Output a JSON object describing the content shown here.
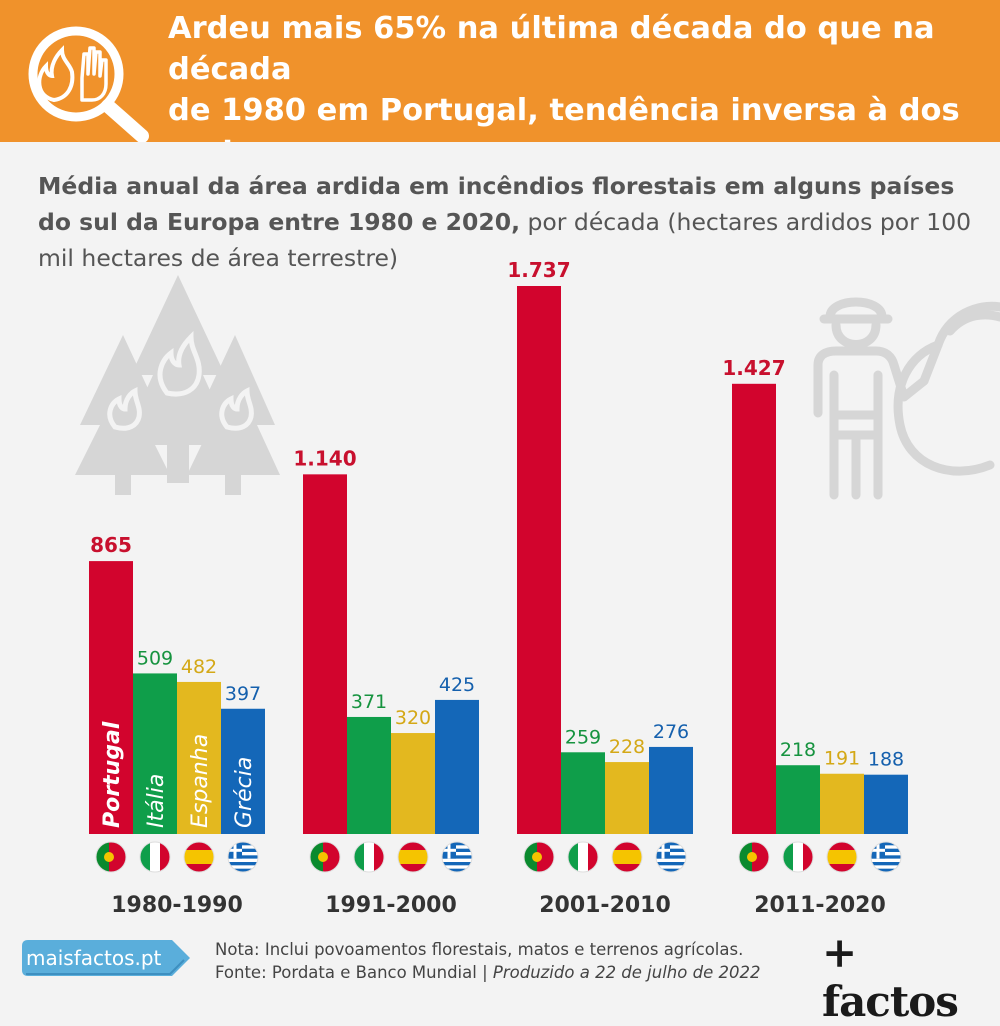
{
  "header": {
    "title": "Ardeu mais 65% na última década do que na década\nde 1980 em Portugal, tendência inversa à dos restan-\ntes países do sul da Europa (arde menos de metade)",
    "icon": "magnifier-fire-hand-icon"
  },
  "subtitle": {
    "bold": "Média anual da área ardida em incêndios florestais em alguns países do sul da Europa entre 1980 e 2020,",
    "regular": " por década (hectares ardidos por 100 mil hectares de área terrestre)"
  },
  "chart_data": {
    "type": "bar",
    "categories": [
      "1980-1990",
      "1991-2000",
      "2001-2010",
      "2011-2020"
    ],
    "series": [
      {
        "name": "Portugal",
        "color": "#d2042d",
        "label_color": "#c8102e",
        "flag": "portugal-flag-icon",
        "values": [
          865,
          1140,
          1737,
          1427
        ],
        "labels": [
          "865",
          "1.140",
          "1.737",
          "1.427"
        ]
      },
      {
        "name": "Itália",
        "color": "#0f9e4a",
        "label_color": "#16933f",
        "flag": "italy-flag-icon",
        "values": [
          509,
          371,
          259,
          218
        ],
        "labels": [
          "509",
          "371",
          "259",
          "218"
        ]
      },
      {
        "name": "Espanha",
        "color": "#e3b81f",
        "label_color": "#d4a816",
        "flag": "spain-flag-icon",
        "values": [
          482,
          320,
          228,
          191
        ],
        "labels": [
          "482",
          "320",
          "228",
          "191"
        ]
      },
      {
        "name": "Grécia",
        "color": "#1467b8",
        "label_color": "#1560ad",
        "flag": "greece-flag-icon",
        "values": [
          397,
          425,
          276,
          188
        ],
        "labels": [
          "397",
          "425",
          "276",
          "188"
        ]
      }
    ],
    "ylim": [
      0,
      1737
    ],
    "grid": false,
    "legend": "inside-first-group-bars"
  },
  "footer": {
    "site": "maisfactos.pt",
    "note": "Nota: Inclui povoamentos florestais, matos e terrenos agrícolas.",
    "source": "Fonte: Pordata e Banco Mundial | ",
    "produced": "Produzido a 22 de julho de 2022",
    "brand": "+ factos"
  }
}
